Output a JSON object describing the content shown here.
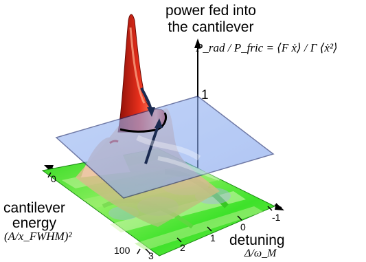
{
  "z_axis": {
    "title_line1": "power fed into",
    "title_line2": "the cantilever",
    "formula": "P_rad / P_fric = ⟨F ẋ⟩ / Γ ⟨ẋ²⟩",
    "plane_value": "1"
  },
  "energy_axis": {
    "label_line1": "cantilever",
    "label_line2": "energy",
    "formula": "(A/x_FWHM)²",
    "tick_start": "0",
    "tick_end": "100"
  },
  "detuning_axis": {
    "label": "detuning",
    "formula": "Δ/ω_M",
    "ticks": [
      "-1",
      "0",
      "1",
      "2",
      "3"
    ]
  },
  "colors": {
    "plane": "#8fb0f0",
    "peak": "#e8301c",
    "floor": "#38e024",
    "arrow": "#1a2a50"
  }
}
